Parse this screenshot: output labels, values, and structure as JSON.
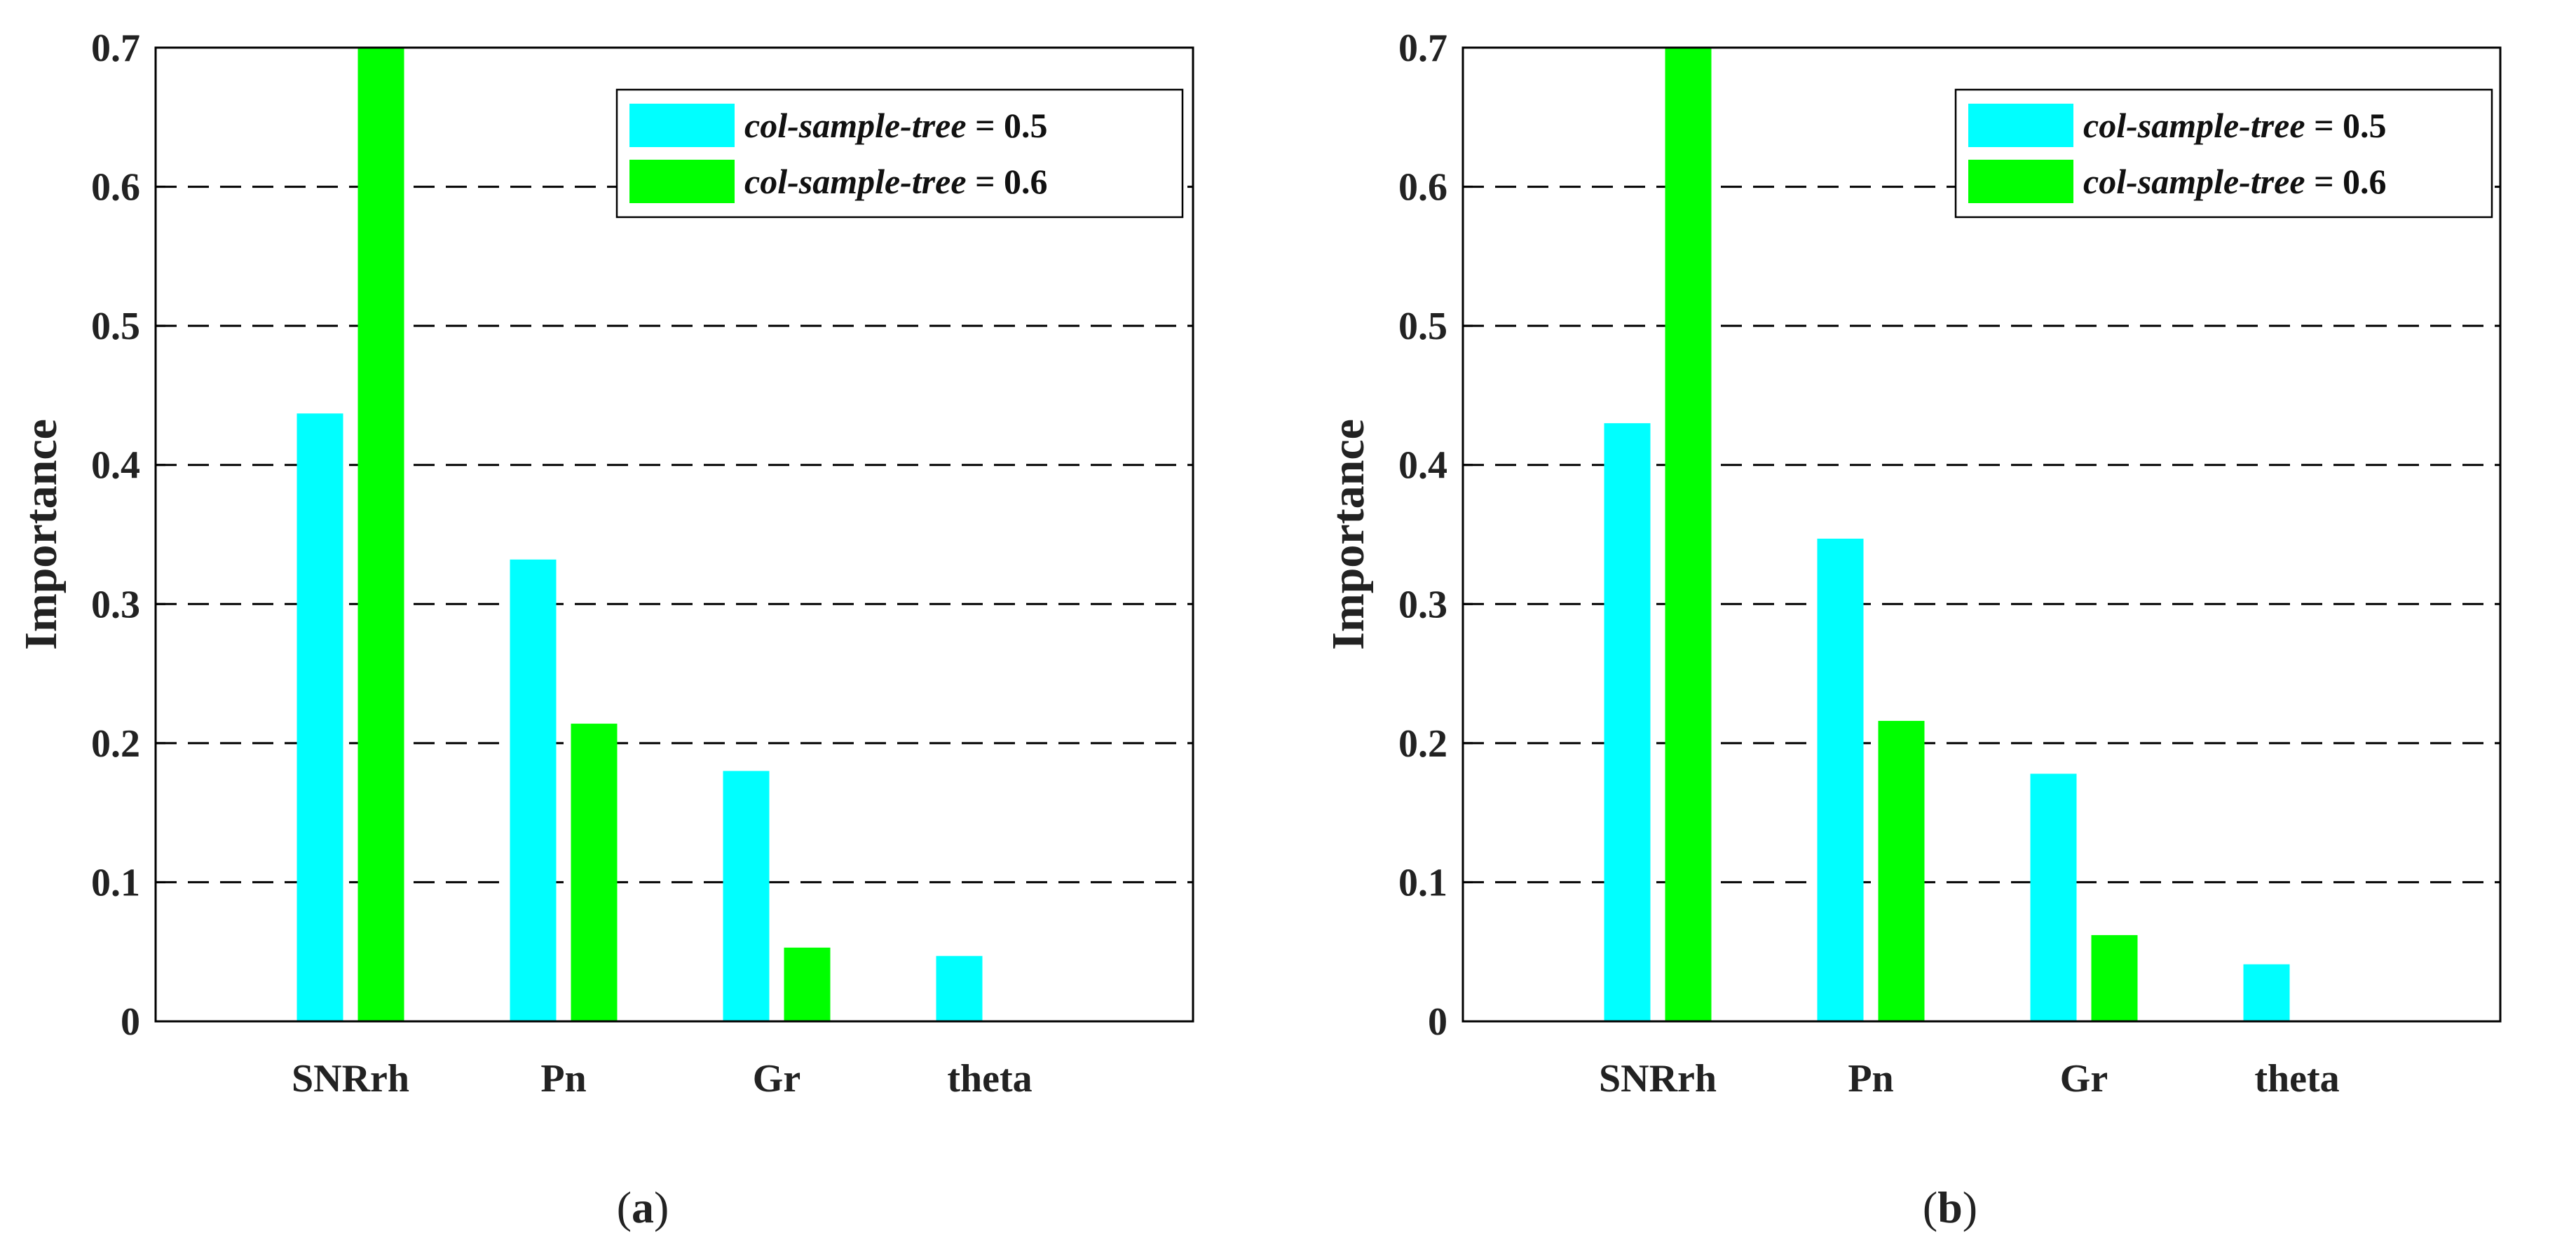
{
  "colors": {
    "series1": "#00FFFF",
    "series2": "#00FF00"
  },
  "chart_data": [
    {
      "type": "bar",
      "categories": [
        "SNRrh",
        "Pn",
        "Gr",
        "theta"
      ],
      "series": [
        {
          "name_italic": "col-sample-tree",
          "name_suffix": " = 0.5",
          "color": "#00FFFF",
          "values": [
            0.437,
            0.332,
            0.18,
            0.047
          ]
        },
        {
          "name_italic": "col-sample-tree",
          "name_suffix": " = 0.6",
          "color": "#00FF00",
          "values": [
            0.7,
            0.214,
            0.053,
            0.0
          ]
        }
      ],
      "ylabel": "Importance",
      "xlabel": "",
      "ylim": [
        0,
        0.7
      ],
      "yticks": [
        "0",
        "0.1",
        "0.2",
        "0.3",
        "0.4",
        "0.5",
        "0.6",
        "0.7"
      ],
      "grid": "dashed horizontal",
      "legend_position": "top-right",
      "caption": {
        "open": "(",
        "letter": "a",
        "close": ")"
      }
    },
    {
      "type": "bar",
      "categories": [
        "SNRrh",
        "Pn",
        "Gr",
        "theta"
      ],
      "series": [
        {
          "name_italic": "col-sample-tree",
          "name_suffix": " = 0.5",
          "color": "#00FFFF",
          "values": [
            0.43,
            0.347,
            0.178,
            0.041
          ]
        },
        {
          "name_italic": "col-sample-tree",
          "name_suffix": " = 0.6",
          "color": "#00FF00",
          "values": [
            0.7,
            0.216,
            0.062,
            0.0
          ]
        }
      ],
      "ylabel": "Importance",
      "xlabel": "",
      "ylim": [
        0,
        0.7
      ],
      "yticks": [
        "0",
        "0.1",
        "0.2",
        "0.3",
        "0.4",
        "0.5",
        "0.6",
        "0.7"
      ],
      "grid": "dashed horizontal",
      "legend_position": "top-right",
      "caption": {
        "open": "(",
        "letter": "b",
        "close": ")"
      }
    }
  ]
}
